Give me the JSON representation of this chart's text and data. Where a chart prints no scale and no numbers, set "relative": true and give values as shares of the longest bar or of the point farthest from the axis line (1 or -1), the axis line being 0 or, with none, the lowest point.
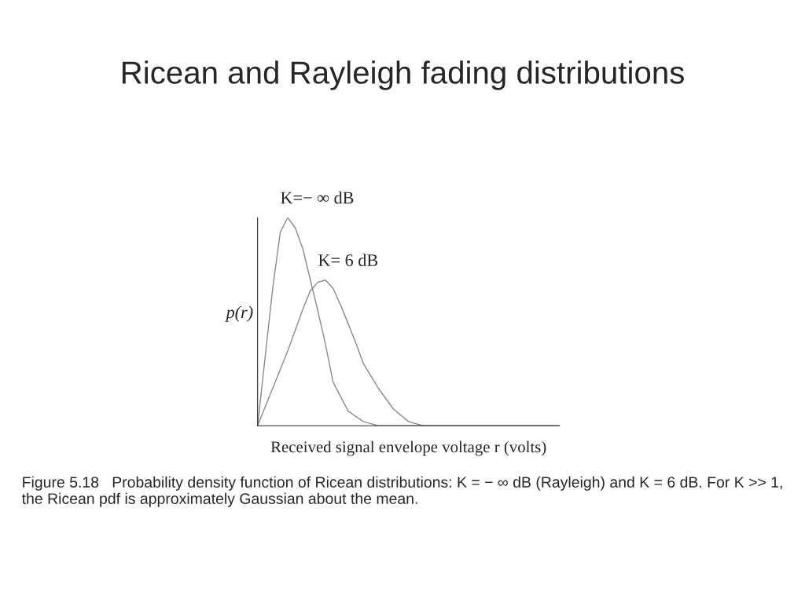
{
  "chart_data": {
    "type": "line",
    "title": "Ricean and Rayleigh fading distributions",
    "xlabel": "Received signal envelope voltage r (volts)",
    "ylabel": "p(r)",
    "relative": true,
    "legend": false,
    "categories": [
      null,
      null,
      null,
      null,
      null,
      null,
      null,
      null,
      null,
      null,
      null,
      null,
      null,
      null,
      null,
      null,
      null,
      null,
      null,
      null,
      null,
      null,
      null,
      null,
      null,
      null,
      null,
      null,
      null,
      null,
      null,
      null,
      null,
      null,
      null,
      null,
      null,
      null,
      null,
      null,
      null
    ],
    "series": [
      {
        "name": "K=− ∞ dB",
        "color": "#8a8a8a",
        "values": [
          0,
          0.33,
          0.66,
          0.93,
          1,
          0.95,
          0.85,
          0.7,
          0.55,
          0.39,
          0.21,
          0.14,
          0.07,
          0.045,
          0.02,
          0.01,
          0,
          0,
          0,
          0,
          0,
          0,
          0,
          0,
          0,
          0,
          0,
          0,
          0,
          0,
          0,
          0,
          0,
          0,
          0,
          0,
          0,
          0,
          0,
          0,
          0
        ]
      },
      {
        "name": "K= 6 dB",
        "color": "#8a8a8a",
        "values": [
          0,
          0.09,
          0.18,
          0.27,
          0.36,
          0.46,
          0.56,
          0.65,
          0.69,
          0.7,
          0.66,
          0.58,
          0.49,
          0.4,
          0.3,
          0.24,
          0.18,
          0.13,
          0.08,
          0.05,
          0.02,
          0.01,
          0,
          0,
          0,
          0,
          0,
          0,
          0,
          0,
          0,
          0,
          0,
          0,
          0,
          0,
          0,
          0,
          0,
          0,
          0
        ]
      }
    ],
    "annotations": [
      "Figure 5.18   Probability density function of Ricean distributions: K = − ∞ dB (Rayleigh) and K = 6 dB. For K >> 1, the Ricean pdf is approximately Gaussian about the mean."
    ]
  }
}
